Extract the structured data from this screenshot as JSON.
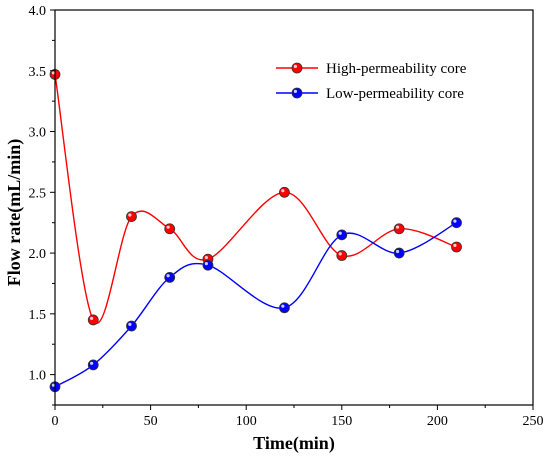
{
  "chart_data": {
    "type": "line",
    "title": "",
    "xlabel": "Time(min)",
    "ylabel": "Flow rate(mL/min)",
    "xlim": [
      0,
      250
    ],
    "ylim": [
      0.75,
      4.0
    ],
    "xticks": [
      0,
      50,
      100,
      150,
      200,
      250
    ],
    "yticks": [
      1.0,
      1.5,
      2.0,
      2.5,
      3.0,
      3.5,
      4.0
    ],
    "grid": false,
    "legend_position": "top-right",
    "series": [
      {
        "name": "High-permeability core",
        "color": "#ff0000",
        "marker": "circle",
        "smooth": true,
        "x": [
          0,
          20,
          40,
          60,
          80,
          120,
          150,
          180,
          210
        ],
        "values": [
          3.47,
          1.45,
          2.3,
          2.2,
          1.95,
          2.5,
          1.98,
          2.2,
          2.05
        ]
      },
      {
        "name": "Low-permeability core",
        "color": "#0000ff",
        "marker": "circle",
        "smooth": true,
        "x": [
          0,
          20,
          40,
          60,
          80,
          120,
          150,
          180,
          210
        ],
        "values": [
          0.9,
          1.08,
          1.4,
          1.8,
          1.9,
          1.55,
          2.15,
          2.0,
          2.25
        ]
      }
    ]
  }
}
